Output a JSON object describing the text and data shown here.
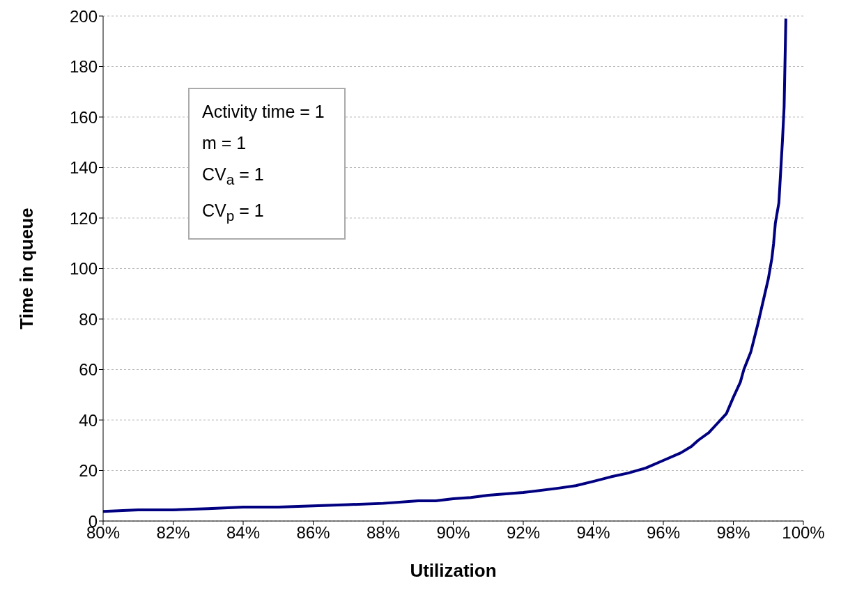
{
  "chart_data": {
    "type": "line",
    "xlabel": "Utilization",
    "ylabel": "Time in queue",
    "annotations": [
      "Activity time = 1",
      "m = 1",
      "CV$_{a}$ = 1",
      "CV$_{p}$ = 1"
    ],
    "x": [
      80,
      81,
      82,
      83,
      84,
      85,
      86,
      87,
      88,
      89,
      89.5,
      90,
      90.5,
      91,
      92,
      93,
      93.5,
      94,
      94.5,
      95,
      95.5,
      96,
      96.5,
      96.8,
      97,
      97.3,
      97.5,
      97.8,
      98,
      98.2,
      98.3,
      98.5,
      98.7,
      98.9,
      99,
      99.1,
      99.15,
      99.2,
      99.3,
      99.4,
      99.45,
      99.5
    ],
    "series": [
      {
        "color": "#000080",
        "values": [
          3.8,
          4.4,
          4.4,
          4.9,
          5.5,
          5.5,
          6,
          6.5,
          7,
          8,
          8,
          8.8,
          9.3,
          10.2,
          11.3,
          13,
          14,
          15.7,
          17.5,
          19,
          21,
          24,
          27,
          29.5,
          32,
          35,
          38,
          42.5,
          49,
          55,
          60,
          67,
          78,
          90,
          96,
          104,
          110,
          118,
          126,
          150,
          164,
          199
        ]
      }
    ],
    "xlim": [
      80,
      100
    ],
    "xticks": [
      {
        "value": 80,
        "label": "80%"
      },
      {
        "value": 82,
        "label": "82%"
      },
      {
        "value": 84,
        "label": "84%"
      },
      {
        "value": 86,
        "label": "86%"
      },
      {
        "value": 88,
        "label": "88%"
      },
      {
        "value": 90,
        "label": "90%"
      },
      {
        "value": 92,
        "label": "92%"
      },
      {
        "value": 94,
        "label": "94%"
      },
      {
        "value": 96,
        "label": "96%"
      },
      {
        "value": 98,
        "label": "98%"
      },
      {
        "value": 100,
        "label": "100%"
      }
    ],
    "ylim": [
      0,
      200
    ],
    "yticks": [
      0,
      20,
      40,
      60,
      80,
      100,
      120,
      140,
      160,
      180,
      200
    ],
    "grid": "y",
    "marker": "none",
    "line_style": "solid"
  }
}
